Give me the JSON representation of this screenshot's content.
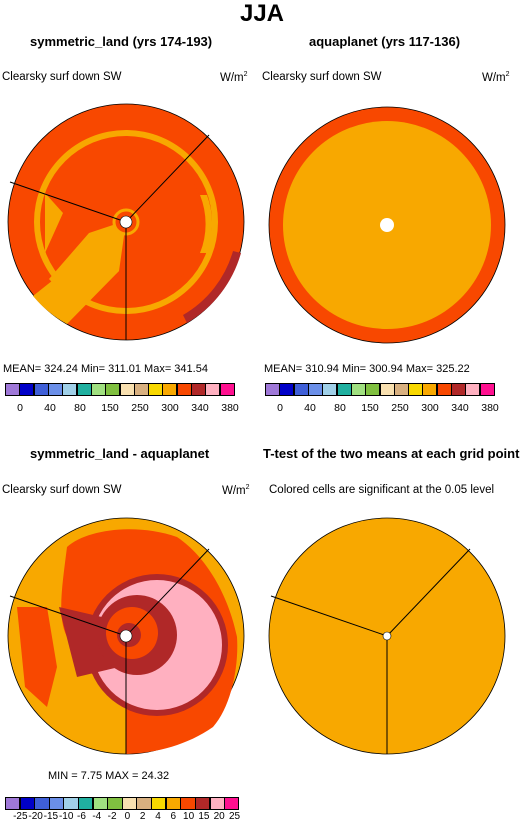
{
  "page_title": "JJA",
  "panels": [
    {
      "title": "symmetric_land (yrs 174-193)",
      "field": "Clearsky surf down SW",
      "units": "W/m",
      "units_sup": "2",
      "stats": "MEAN= 324.24   Min= 311.01   Max= 341.54"
    },
    {
      "title": "aquaplanet (yrs 117-136)",
      "field": "Clearsky surf down SW",
      "units": "W/m",
      "units_sup": "2",
      "stats": "MEAN= 310.94   Min= 300.94   Max= 325.22"
    },
    {
      "title": "symmetric_land - aquaplanet",
      "field": "Clearsky surf down SW",
      "units": "W/m",
      "units_sup": "2",
      "stats": "MIN =     7.75  MAX =    24.32"
    },
    {
      "title": "T-test of the two means at each grid point",
      "field": "Colored cells are significant at the 0.05 level"
    }
  ],
  "colorbar_main": {
    "colors": [
      "#9f78d8",
      "#0000c8",
      "#3f5fd8",
      "#6b8fe8",
      "#a0d0e8",
      "#20b0a0",
      "#a0e080",
      "#80c040",
      "#f8e0b0",
      "#d8b080",
      "#f8d800",
      "#f8a800",
      "#f84800",
      "#b02828",
      "#ffb0c0",
      "#ff1090"
    ],
    "labels": [
      "0",
      "40",
      "80",
      "150",
      "250",
      "300",
      "340",
      "380"
    ]
  },
  "colorbar_diff": {
    "colors": [
      "#9f78d8",
      "#0000c8",
      "#3f5fd8",
      "#6b8fe8",
      "#a0d0e8",
      "#20b0a0",
      "#a0e080",
      "#80c040",
      "#f8e0b0",
      "#d8b080",
      "#f8d800",
      "#f8a800",
      "#f84800",
      "#b02828",
      "#ffb0c0",
      "#ff1090"
    ],
    "labels": [
      "-25",
      "-20",
      "-15",
      "-10",
      "-6",
      "-4",
      "-2",
      "0",
      "2",
      "4",
      "6",
      "10",
      "15",
      "20",
      "25"
    ]
  },
  "chart_data": [
    {
      "type": "heatmap",
      "projection": "polar-stereographic",
      "title": "symmetric_land (yrs 174-193)",
      "variable": "Clearsky surf down SW",
      "units": "W/m2",
      "mean": 324.24,
      "min": 311.01,
      "max": 341.54,
      "regions": [
        {
          "name": "outer ring",
          "level": "340"
        },
        {
          "name": "mid ring",
          "level": "300-340"
        },
        {
          "name": "interior",
          "level": "340"
        }
      ]
    },
    {
      "type": "heatmap",
      "projection": "polar-stereographic",
      "title": "aquaplanet (yrs 117-136)",
      "variable": "Clearsky surf down SW",
      "units": "W/m2",
      "mean": 310.94,
      "min": 300.94,
      "max": 325.22,
      "regions": [
        {
          "name": "outer ring",
          "level": "340"
        },
        {
          "name": "interior",
          "level": "300-340"
        }
      ]
    },
    {
      "type": "heatmap",
      "projection": "polar-stereographic",
      "title": "symmetric_land - aquaplanet",
      "variable": "Clearsky surf down SW",
      "units": "W/m2",
      "min": 7.75,
      "max": 24.32,
      "levels": [
        -25,
        -20,
        -15,
        -10,
        -6,
        -4,
        -2,
        0,
        2,
        4,
        6,
        10,
        15,
        20,
        25
      ]
    },
    {
      "type": "heatmap",
      "projection": "polar-stereographic",
      "title": "T-test of the two means at each grid point",
      "note": "Colored cells are significant at the 0.05 level",
      "significant": "all cells"
    }
  ],
  "colors": {
    "orange": "#f8a800",
    "red_orange": "#f84800",
    "dark_red": "#b02828",
    "pink": "#ffb0c0"
  }
}
